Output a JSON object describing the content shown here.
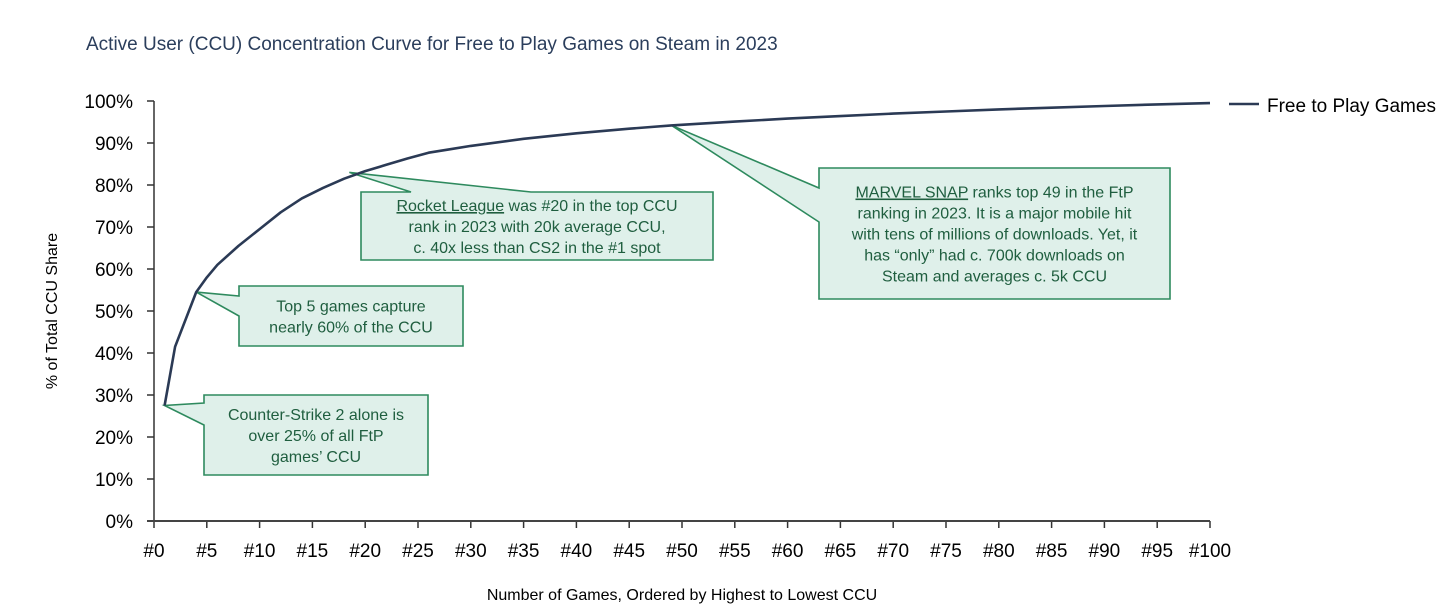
{
  "chart_data": {
    "type": "line",
    "title": "Active User (CCU) Concentration Curve for Free to Play Games on Steam in 2023",
    "xlabel": "Number of Games, Ordered by Highest to Lowest CCU",
    "ylabel": "% of Total CCU Share",
    "xlim": [
      0,
      100
    ],
    "ylim": [
      0,
      100
    ],
    "grid": false,
    "legend_position": "right",
    "x_tick_labels": [
      "#0",
      "#5",
      "#10",
      "#15",
      "#20",
      "#25",
      "#30",
      "#35",
      "#40",
      "#45",
      "#50",
      "#55",
      "#60",
      "#65",
      "#70",
      "#75",
      "#80",
      "#85",
      "#90",
      "#95",
      "#100"
    ],
    "y_tick_labels": [
      "0%",
      "10%",
      "20%",
      "30%",
      "40%",
      "50%",
      "60%",
      "70%",
      "80%",
      "90%",
      "100%"
    ],
    "series": [
      {
        "name": "Free to Play Games",
        "color": "#2b3a55",
        "x": [
          1,
          2,
          4,
          5,
          6,
          8,
          10,
          12,
          14,
          16,
          18,
          20,
          22,
          24,
          26,
          28,
          30,
          35,
          40,
          45,
          49,
          55,
          60,
          65,
          70,
          75,
          80,
          85,
          90,
          95,
          100
        ],
        "y": [
          27.5,
          41.5,
          54.5,
          58.0,
          61.0,
          65.5,
          69.5,
          73.5,
          76.8,
          79.3,
          81.5,
          83.3,
          84.8,
          86.3,
          87.7,
          88.5,
          89.3,
          91.0,
          92.3,
          93.4,
          94.2,
          95.1,
          95.8,
          96.4,
          97.0,
          97.5,
          98.0,
          98.4,
          98.8,
          99.2,
          99.5
        ]
      }
    ],
    "annotations": [
      {
        "id": "cs2",
        "point_x": 1,
        "point_y": 27.5,
        "underlined": "",
        "lines": [
          "Counter-Strike 2 alone is",
          "over 25% of all FtP",
          "games’ CCU"
        ]
      },
      {
        "id": "top5",
        "point_x": 4,
        "point_y": 54.5,
        "underlined": "",
        "lines": [
          "Top 5 games capture",
          "nearly 60% of the CCU"
        ]
      },
      {
        "id": "rocket",
        "point_x": 18.5,
        "point_y": 83.0,
        "underlined": "Rocket League",
        "lines": [
          " was #20 in the top CCU",
          "rank in 2023 with 20k average CCU,",
          "c. 40x less than CS2 in the #1 spot"
        ]
      },
      {
        "id": "snap",
        "point_x": 49,
        "point_y": 94.2,
        "underlined": "MARVEL SNAP",
        "lines": [
          " ranks top 49 in the FtP",
          "ranking in 2023. It is a major mobile hit",
          "with tens of millions of downloads. Yet, it",
          "has “only” had c. 700k downloads on",
          "Steam and averages c. 5k CCU"
        ]
      }
    ],
    "colors": {
      "line": "#2b3a55",
      "callout_fill": "#dff0ea",
      "callout_border": "#2e8a5e",
      "callout_text": "#1f5e3f",
      "title": "#2b3e5c"
    }
  }
}
